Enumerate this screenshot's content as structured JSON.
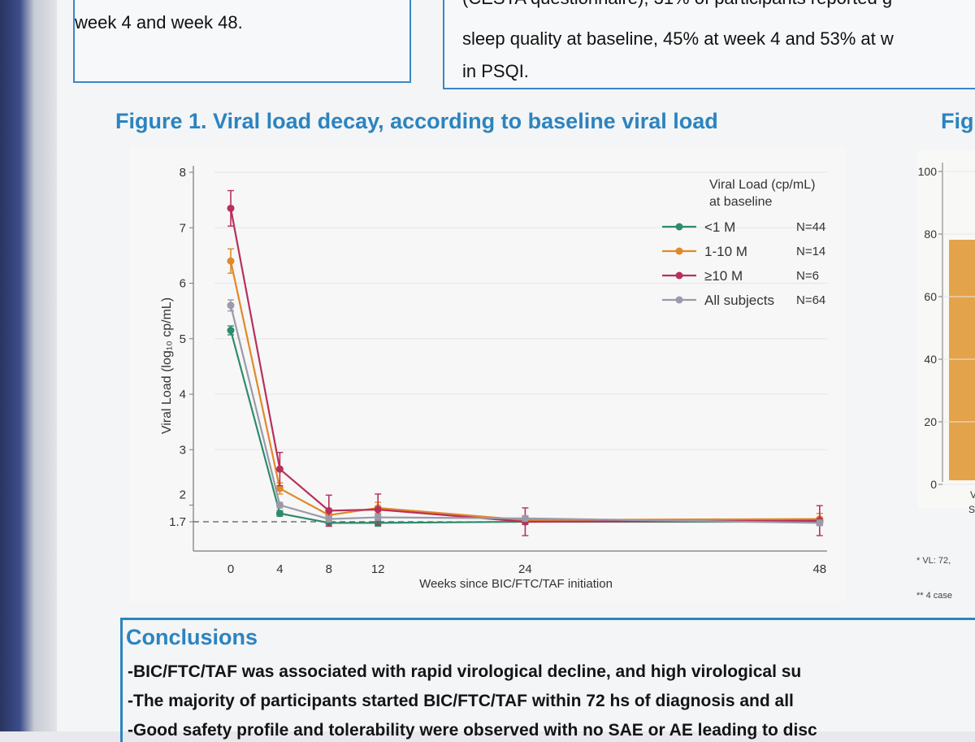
{
  "top_left_box": {
    "text": "week 4 and week 48."
  },
  "top_right_box": {
    "lines": [
      "(CESTA questionnaire); 31% of participants reported g",
      "sleep quality at baseline, 45% at week 4 and 53% at w",
      "in PSQI."
    ]
  },
  "figure_title": "Figure 1. Viral load decay, according to baseline viral load",
  "figure2_title_partial": "Fig",
  "chart_data": {
    "type": "line",
    "title": "",
    "xlabel": "Weeks since BIC/FTC/TAF initiation",
    "ylabel": "Viral Load (log₁₀ cp/mL)",
    "x": [
      0,
      4,
      8,
      12,
      24,
      48
    ],
    "x_ticks": [
      "0",
      "4",
      "8",
      "12",
      "24",
      "48"
    ],
    "y_ticks": [
      "1.7",
      "2",
      "3",
      "4",
      "5",
      "6",
      "7",
      "8"
    ],
    "y_tick_values": [
      1.7,
      2,
      3,
      4,
      5,
      6,
      7,
      8
    ],
    "ylim": [
      1.7,
      8
    ],
    "reference_line": {
      "y": 1.7,
      "style": "dashed"
    },
    "legend_title": "Viral Load (cp/mL)\nat baseline",
    "legend_position": "top-right",
    "series": [
      {
        "name": "<1 M",
        "n_label": "N=44",
        "color": "#2e8b6a",
        "values": [
          5.15,
          1.85,
          1.68,
          1.68,
          1.7,
          1.7
        ],
        "err": [
          0.08,
          0.05,
          0.06,
          0.06,
          0.05,
          0.06
        ]
      },
      {
        "name": "1-10 M",
        "n_label": "N=14",
        "color": "#e0892a",
        "values": [
          6.4,
          2.3,
          1.82,
          1.95,
          1.73,
          1.75
        ],
        "err": [
          0.22,
          0.1,
          0.08,
          0.1,
          0.06,
          0.1
        ]
      },
      {
        "name": "≥10 M",
        "n_label": "N=6",
        "color": "#b8305a",
        "values": [
          7.35,
          2.65,
          1.9,
          1.92,
          1.7,
          1.72
        ],
        "err": [
          0.32,
          0.3,
          0.28,
          0.28,
          0.25,
          0.27
        ]
      },
      {
        "name": "All subjects",
        "n_label": "N=64",
        "color": "#9a9aaa",
        "values": [
          5.6,
          2.0,
          1.75,
          1.78,
          1.76,
          1.68
        ],
        "err": [
          0.1,
          0.05,
          0.05,
          0.05,
          0.05,
          0.05
        ]
      }
    ]
  },
  "right_chart": {
    "y_ticks": [
      "100",
      "80",
      "60",
      "40",
      "20",
      "0"
    ],
    "bar_color": "#e3a34a",
    "notes": [
      "* VL: 72,",
      "** 4 case"
    ],
    "x_label_fragments": [
      "V",
      "S"
    ]
  },
  "conclusions": {
    "title": "Conclusions",
    "lines": [
      "-BIC/FTC/TAF was associated with rapid virological decline, and high virological su",
      "-The majority of participants started BIC/FTC/TAF within 72 hs of diagnosis and all",
      "-Good safety profile and tolerability were observed with no SAE or AE leading to disc"
    ]
  }
}
